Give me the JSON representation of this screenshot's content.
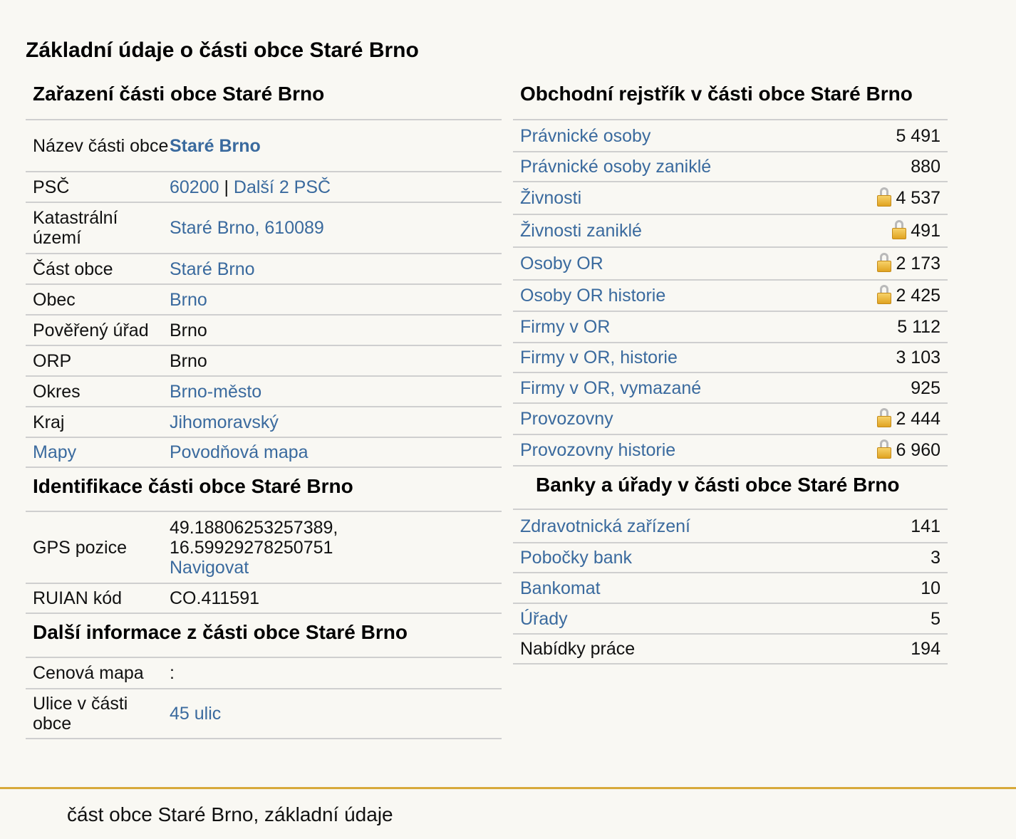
{
  "page": {
    "title": "Základní údaje o části obce Staré Brno"
  },
  "zarazeni": {
    "title": "Zařazení části obce Staré Brno",
    "rows": [
      {
        "label": "Název části obce",
        "value": "Staré Brno"
      },
      {
        "label": "PSČ",
        "value": "60200",
        "separator": " | ",
        "value2": "Další 2 PSČ"
      },
      {
        "label": "Katastrální území",
        "value": "Staré Brno, 610089"
      },
      {
        "label": "Část obce",
        "value": "Staré Brno"
      },
      {
        "label": "Obec",
        "value": "Brno"
      },
      {
        "label": "Pověřený úřad",
        "value": "Brno"
      },
      {
        "label": "ORP",
        "value": "Brno"
      },
      {
        "label": "Okres",
        "value": "Brno-město"
      },
      {
        "label": "Kraj",
        "value": "Jihomoravský"
      },
      {
        "label": "Mapy",
        "value": "Povodňová mapa"
      }
    ]
  },
  "identifikace": {
    "title": "Identifikace části obce Staré Brno",
    "rows": [
      {
        "label": "GPS pozice",
        "value": "49.18806253257389,",
        "value2": "16.59929278250751",
        "link": "Navigovat"
      },
      {
        "label": "RUIAN kód",
        "value": "CO.411591"
      }
    ]
  },
  "dalsi": {
    "title": "Další informace z části obce Staré Brno",
    "rows": [
      {
        "label": "Cenová mapa",
        "value": ":"
      },
      {
        "label": "Ulice v části obce",
        "value": "45 ulic"
      }
    ]
  },
  "obchodni": {
    "title": "Obchodní rejstřík v části obce Staré Brno",
    "rows": [
      {
        "label": "Právnické osoby",
        "value": "5 491",
        "locked": false
      },
      {
        "label": "Právnické osoby zaniklé",
        "value": "880",
        "locked": false
      },
      {
        "label": "Živnosti",
        "value": "4 537",
        "locked": true
      },
      {
        "label": "Živnosti zaniklé",
        "value": "491",
        "locked": true
      },
      {
        "label": "Osoby OR",
        "value": "2 173",
        "locked": true
      },
      {
        "label": "Osoby OR historie",
        "value": "2 425",
        "locked": true
      },
      {
        "label": "Firmy v OR",
        "value": "5 112",
        "locked": false
      },
      {
        "label": "Firmy v OR, historie",
        "value": "3 103",
        "locked": false
      },
      {
        "label": "Firmy v OR, vymazané",
        "value": "925",
        "locked": false
      },
      {
        "label": "Provozovny",
        "value": "2 444",
        "locked": true
      },
      {
        "label": "Provozovny historie",
        "value": "6 960",
        "locked": true
      }
    ]
  },
  "banky": {
    "title": "Banky a úřady v části obce Staré Brno",
    "rows": [
      {
        "label": "Zdravotnická zařízení",
        "value": "141"
      },
      {
        "label": "Pobočky bank",
        "value": "3"
      },
      {
        "label": "Bankomat",
        "value": "10"
      },
      {
        "label": "Úřady",
        "value": "5"
      },
      {
        "label": "Nabídky práce",
        "value": "194"
      }
    ]
  },
  "footer": {
    "text": "část obce Staré Brno, základní údaje"
  },
  "colors": {
    "link": "#3a6a9e",
    "border": "#cfcfcf",
    "background": "#f9f8f3",
    "footer_line": "#d8a93a"
  }
}
